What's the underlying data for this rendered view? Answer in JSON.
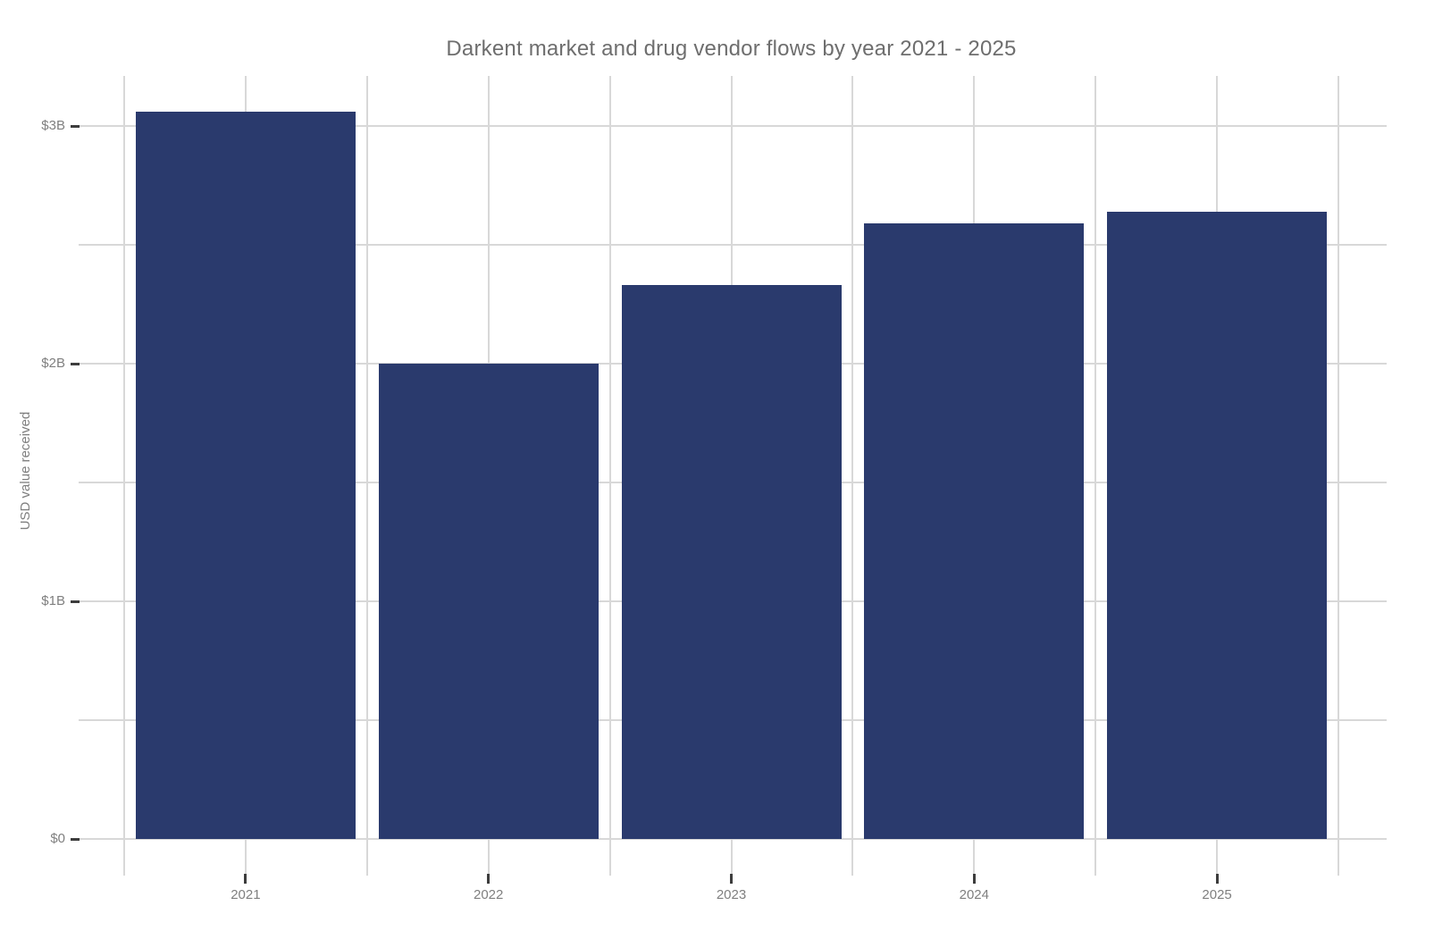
{
  "chart_data": {
    "type": "bar",
    "title": "Darkent market and drug vendor flows by year 2021 - 2025",
    "ylabel": "USD value received",
    "xlabel": "",
    "categories": [
      "2021",
      "2022",
      "2023",
      "2024",
      "2025"
    ],
    "values": [
      3.06,
      2.0,
      2.33,
      2.59,
      2.64
    ],
    "values_unit": "USD billions",
    "ylim": [
      0,
      3.21
    ],
    "ytick_values": [
      0,
      1,
      2,
      3
    ],
    "ytick_labels": [
      "$0",
      "$1B",
      "$2B",
      "$3B"
    ],
    "minor_gridline_values": [
      0.5,
      1.5,
      2.5
    ],
    "grid": true,
    "legend_position": "none",
    "colors": {
      "bar": "#2a3a6d",
      "gridline": "#d8d8d8",
      "tick_mark": "#3d3d3d",
      "tick_label": "#7f7f7f",
      "axis_label": "#7f7f7f",
      "title": "#6e6e6e",
      "background": "#ffffff"
    }
  }
}
